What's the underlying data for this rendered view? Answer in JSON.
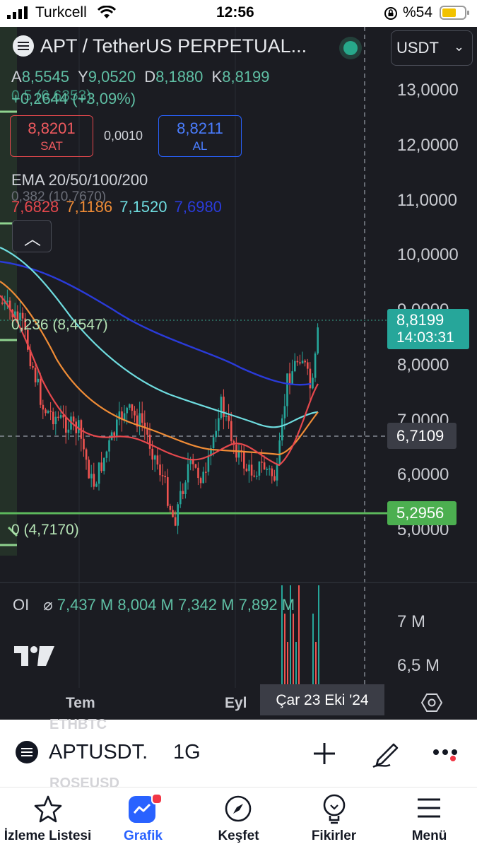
{
  "status_bar": {
    "carrier": "Turkcell",
    "time": "12:56",
    "battery": "%54"
  },
  "chart_header": {
    "symbol_title": "APT / TetherUS PERPETUAL...",
    "currency": "USDT",
    "ohlc": {
      "a_label": "A",
      "a_value": "8,5545",
      "y_label": "Y",
      "y_value": "9,0520",
      "d_label": "D",
      "d_value": "8,1880",
      "k_label": "K",
      "k_value": "8,8199"
    },
    "change": "+0,2644 (+3,09%)",
    "change_ghost": "0,5 (6,6353)",
    "sell": {
      "price": "8,8201",
      "label": "SAT"
    },
    "spread": "0,0010",
    "buy": {
      "price": "8,8211",
      "label": "AL"
    }
  },
  "ema": {
    "title": "EMA 20/50/100/200",
    "ghost": "0,382 (10,7670)",
    "values": [
      "7,6828",
      "7,1186",
      "7,1520",
      "7,6980"
    ],
    "colors": [
      "#e5484d",
      "#f08c36",
      "#6fdde0",
      "#2a3bd9"
    ]
  },
  "fib": {
    "level_236": "0,236 (8,4547)",
    "level_0": "0 (4,7170)"
  },
  "price_axis": {
    "ticks": [
      "13,0000",
      "12,0000",
      "11,0000",
      "10,0000",
      "9,0000",
      "8,0000",
      "7,0000",
      "6,0000",
      "5,0000"
    ],
    "current_price": "8,8199",
    "countdown": "14:03:31",
    "crosshair_price": "6,7109",
    "line_price": "5,2956"
  },
  "oi": {
    "label": "OI",
    "symbol": "⌀",
    "values": [
      "7,437 M",
      "8,004 M",
      "7,342 M",
      "7,892 M"
    ],
    "axis_ticks": [
      "7 M",
      "6,5 M"
    ]
  },
  "time_axis": {
    "labels": [
      "Tem",
      "Eyl"
    ],
    "crosshair_date": "Çar 23 Eki '24"
  },
  "ghost_list": [
    "ETHBTC",
    "ROSEUSD"
  ],
  "symbol_bar": {
    "symbol": "APTUSDT.",
    "interval": "1G"
  },
  "tabs": [
    {
      "label": "İzleme Listesi",
      "icon": "star-icon"
    },
    {
      "label": "Grafik",
      "icon": "chart-icon"
    },
    {
      "label": "Keşfet",
      "icon": "compass-icon"
    },
    {
      "label": "Fikirler",
      "icon": "lightbulb-icon"
    },
    {
      "label": "Menü",
      "icon": "hamburger-icon"
    }
  ],
  "colors": {
    "up": "#26a69a",
    "down": "#ef5350",
    "accent_blue": "#2962ff",
    "green_line": "#5cb85c"
  }
}
